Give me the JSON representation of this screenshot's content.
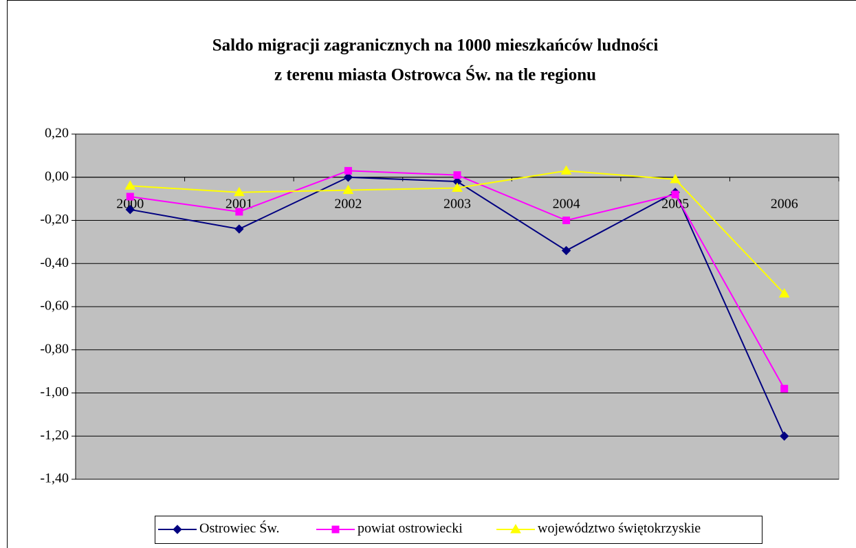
{
  "chart_data": {
    "type": "line",
    "title": [
      "Saldo migracji zagranicznych na 1000 mieszkańców ludności",
      "z terenu miasta Ostrowca Św. na tle regionu"
    ],
    "categories": [
      "2000",
      "2001",
      "2002",
      "2003",
      "2004",
      "2005",
      "2006"
    ],
    "series": [
      {
        "name": "Ostrowiec Św.",
        "color": "#000080",
        "marker": "diamond",
        "values": [
          -0.15,
          -0.24,
          0.0,
          -0.02,
          -0.34,
          -0.07,
          -1.2
        ]
      },
      {
        "name": "powiat ostrowiecki",
        "color": "#ff00ff",
        "marker": "square",
        "values": [
          -0.09,
          -0.16,
          0.03,
          0.01,
          -0.2,
          -0.08,
          -0.98
        ]
      },
      {
        "name": "województwo świętokrzyskie",
        "color": "#ffff00",
        "marker": "triangle",
        "values": [
          -0.04,
          -0.07,
          -0.06,
          -0.05,
          0.03,
          -0.01,
          -0.54
        ]
      }
    ],
    "ylim": [
      -1.4,
      0.2
    ],
    "yticks": [
      {
        "value": -1.4,
        "label": "-1,40"
      },
      {
        "value": -1.2,
        "label": "-1,20"
      },
      {
        "value": -1.0,
        "label": "-1,00"
      },
      {
        "value": -0.8,
        "label": "-0,80"
      },
      {
        "value": -0.6,
        "label": "-0,60"
      },
      {
        "value": -0.4,
        "label": "-0,40"
      },
      {
        "value": -0.2,
        "label": "-0,20"
      },
      {
        "value": 0,
        "label": "0,00"
      },
      {
        "value": 0.2,
        "label": "0,20"
      }
    ],
    "grid": true,
    "legend": "bottom"
  }
}
